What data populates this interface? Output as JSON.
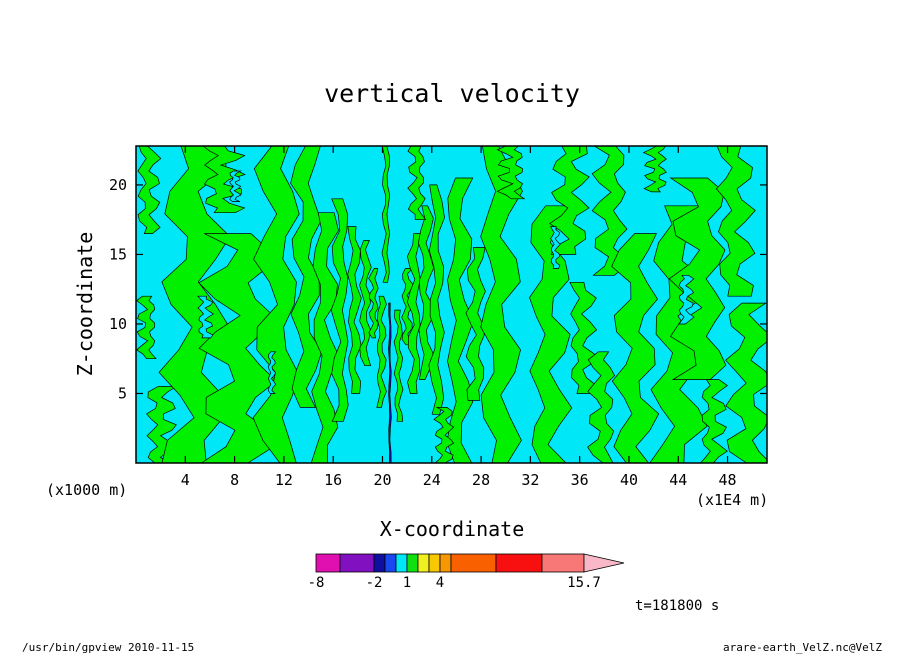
{
  "chart_data": {
    "type": "heatmap",
    "title": "vertical velocity",
    "xlabel": "X-coordinate",
    "ylabel": "Z-coordinate",
    "x_unit_left": "(x1000 m)",
    "x_unit_right": "(x1E4 m)",
    "x_ticks": [
      "4",
      "8",
      "12",
      "16",
      "20",
      "24",
      "28",
      "32",
      "36",
      "40",
      "44",
      "48"
    ],
    "y_ticks": [
      "5",
      "10",
      "15",
      "20"
    ],
    "xlim": [
      0,
      51.2
    ],
    "ylim": [
      0,
      22.8
    ],
    "time_label": "t=181800 s",
    "colorbar": {
      "tick_labels": [
        "-8",
        "-2",
        "1",
        "4",
        "15.7"
      ],
      "colors": [
        "#e010b0",
        "#8010c0",
        "#1010a0",
        "#1848f0",
        "#00e8f8",
        "#10e010",
        "#f0f020",
        "#f8c800",
        "#f89800",
        "#f86000",
        "#f81010",
        "#f87878",
        "#f8b8c8"
      ]
    },
    "field_colors": {
      "negative": "#00e8f8",
      "positive": "#00f000"
    }
  },
  "footer": {
    "left": "/usr/bin/gpview   2010-11-15",
    "right": "arare-earth_VelZ.nc@VelZ"
  }
}
